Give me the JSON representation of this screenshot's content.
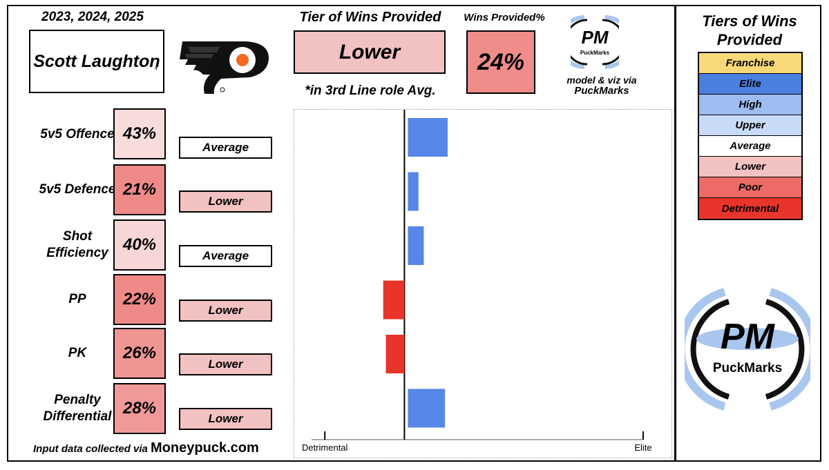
{
  "header": {
    "seasons": "2023, 2024, 2025",
    "player_name": "Scott Laughton",
    "team_logo_icon": "flyers-logo-icon"
  },
  "summary": {
    "tier_title": "Tier of Wins Provided",
    "tier_value": "Lower",
    "tier_note": "*in 3rd Line role Avg.",
    "wins_title": "Wins Provided%",
    "wins_value": "24%"
  },
  "branding": {
    "logo_text": "PM",
    "logo_subtext": "PuckMarks",
    "credit_line1": "model & viz via",
    "credit_line2": "PuckMarks"
  },
  "metrics": [
    {
      "label": "5v5 Offence",
      "pct": "43%",
      "tier": "Average",
      "pct_color": "#f8dcdc",
      "tier_color": "#ffffff"
    },
    {
      "label": "5v5 Defence",
      "pct": "21%",
      "tier": "Lower",
      "pct_color": "#ee8a88",
      "tier_color": "#f2c1c1"
    },
    {
      "label": "Shot Efficiency",
      "pct": "40%",
      "tier": "Average",
      "pct_color": "#f6d6d6",
      "tier_color": "#ffffff"
    },
    {
      "label": "PP",
      "pct": "22%",
      "tier": "Lower",
      "pct_color": "#ee8a88",
      "tier_color": "#f2c1c1"
    },
    {
      "label": "PK",
      "pct": "26%",
      "tier": "Lower",
      "pct_color": "#ef9592",
      "tier_color": "#f2c1c1"
    },
    {
      "label": "Penalty Differential",
      "pct": "28%",
      "tier": "Lower",
      "pct_color": "#ef9a98",
      "tier_color": "#f2c1c1"
    }
  ],
  "source": {
    "prefix": "Input data collected via",
    "site": "Moneypuck.com"
  },
  "chart_data": {
    "type": "bar",
    "orientation": "horizontal",
    "categories": [
      "5v5 Offence",
      "5v5 Defence",
      "Shot Efficiency",
      "PP",
      "PK",
      "Penalty Differential"
    ],
    "values": [
      1.5,
      0.4,
      0.6,
      -0.8,
      -0.7,
      1.4
    ],
    "xlim": [
      -3.5,
      9
    ],
    "x_tick_labels": [
      "Detrimental",
      "Elite"
    ],
    "x_ticks": [
      -3,
      9
    ],
    "positive_color": "#5687e8",
    "negative_color": "#e8342a"
  },
  "legend": {
    "title": "Tiers of Wins Provided",
    "items": [
      {
        "label": "Franchise",
        "color": "#f9d977"
      },
      {
        "label": "Elite",
        "color": "#4b7fe0"
      },
      {
        "label": "High",
        "color": "#9dbcf0"
      },
      {
        "label": "Upper",
        "color": "#c8daf8"
      },
      {
        "label": "Average",
        "color": "#ffffff"
      },
      {
        "label": "Lower",
        "color": "#f2c1c1"
      },
      {
        "label": "Poor",
        "color": "#ec6b66"
      },
      {
        "label": "Detrimental",
        "color": "#e8342a"
      }
    ]
  }
}
